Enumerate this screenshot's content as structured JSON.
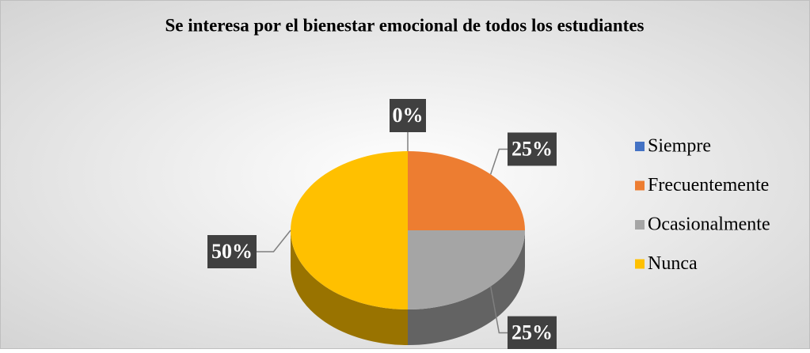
{
  "chart_data": {
    "type": "pie",
    "title": "Se interesa por el bienestar emocional de todos los estudiantes",
    "categories": [
      "Siempre",
      "Frecuentemente",
      "Ocasionalmente",
      "Nunca"
    ],
    "values": [
      0,
      25,
      25,
      50
    ],
    "value_labels": [
      "0%",
      "25%",
      "25%",
      "50%"
    ],
    "colors": [
      "#4472c4",
      "#ed7d31",
      "#a5a5a5",
      "#ffc000"
    ],
    "legend": "right"
  }
}
